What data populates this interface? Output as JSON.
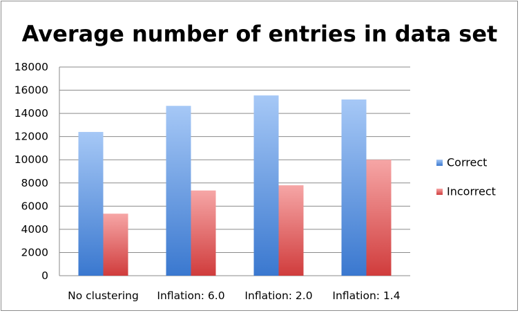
{
  "chart_data": {
    "type": "bar",
    "title": "Average number of entries in data set",
    "xlabel": "",
    "ylabel": "",
    "categories": [
      "No clustering",
      "Inflation: 6.0",
      "Inflation: 2.0",
      "Inflation: 1.4"
    ],
    "series": [
      {
        "name": "Correct",
        "values": [
          12400,
          14650,
          15550,
          15200
        ],
        "color": "#4a86d8"
      },
      {
        "name": "Incorrect",
        "values": [
          5350,
          7350,
          7800,
          10000
        ],
        "color": "#e06060"
      }
    ],
    "ylim": [
      0,
      18000
    ],
    "yticks": [
      0,
      2000,
      4000,
      6000,
      8000,
      10000,
      12000,
      14000,
      16000,
      18000
    ],
    "grid": true,
    "legend_position": "right"
  }
}
